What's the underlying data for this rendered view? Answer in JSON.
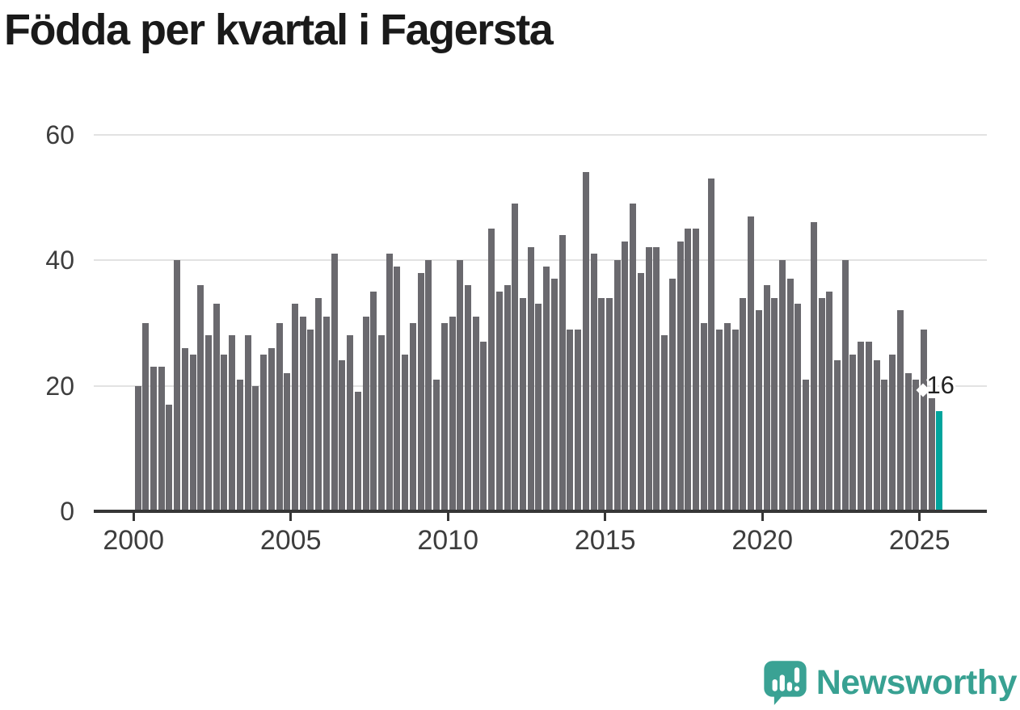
{
  "title": "Födda per kvartal i Fagersta",
  "chart_data": {
    "type": "bar",
    "title": "Födda per kvartal i Fagersta",
    "x_start": "2000 Q1",
    "x_end": "2025 Q3",
    "frequency": "quarterly",
    "x_tick_labels": [
      "2000",
      "2005",
      "2010",
      "2015",
      "2020",
      "2025"
    ],
    "y_ticks": [
      0,
      20,
      40,
      60
    ],
    "ylim": [
      0,
      60
    ],
    "grid": "horizontal",
    "legend_position": "none",
    "series": [
      {
        "name": "Födda per kvartal",
        "values": [
          20,
          30,
          23,
          23,
          17,
          40,
          26,
          25,
          36,
          28,
          33,
          25,
          28,
          21,
          28,
          20,
          25,
          26,
          30,
          22,
          33,
          31,
          29,
          34,
          31,
          41,
          24,
          28,
          19,
          31,
          35,
          28,
          41,
          39,
          25,
          30,
          38,
          40,
          21,
          30,
          31,
          40,
          36,
          31,
          27,
          45,
          35,
          36,
          49,
          34,
          42,
          33,
          39,
          37,
          44,
          29,
          29,
          54,
          41,
          34,
          34,
          40,
          43,
          49,
          38,
          42,
          42,
          28,
          37,
          43,
          45,
          45,
          30,
          53,
          29,
          30,
          29,
          34,
          47,
          32,
          36,
          34,
          40,
          37,
          33,
          21,
          46,
          34,
          35,
          24,
          40,
          25,
          27,
          27,
          24,
          21,
          25,
          32,
          22,
          21,
          29,
          18,
          16
        ]
      }
    ],
    "highlight_index": 102,
    "highlight_label": "16",
    "bar_color": "#6a696e",
    "highlight_color": "#00a49d",
    "gridline_color": "#e2e2e2",
    "axis_color": "#363636",
    "tick_text_color": "#3d3d3d"
  },
  "annotation": {
    "label": "16"
  },
  "branding": {
    "logo_text": "Newsworthy",
    "logo_icon": "bar-chart-speech-bubble-icon",
    "brand_color": "#3aa294"
  }
}
